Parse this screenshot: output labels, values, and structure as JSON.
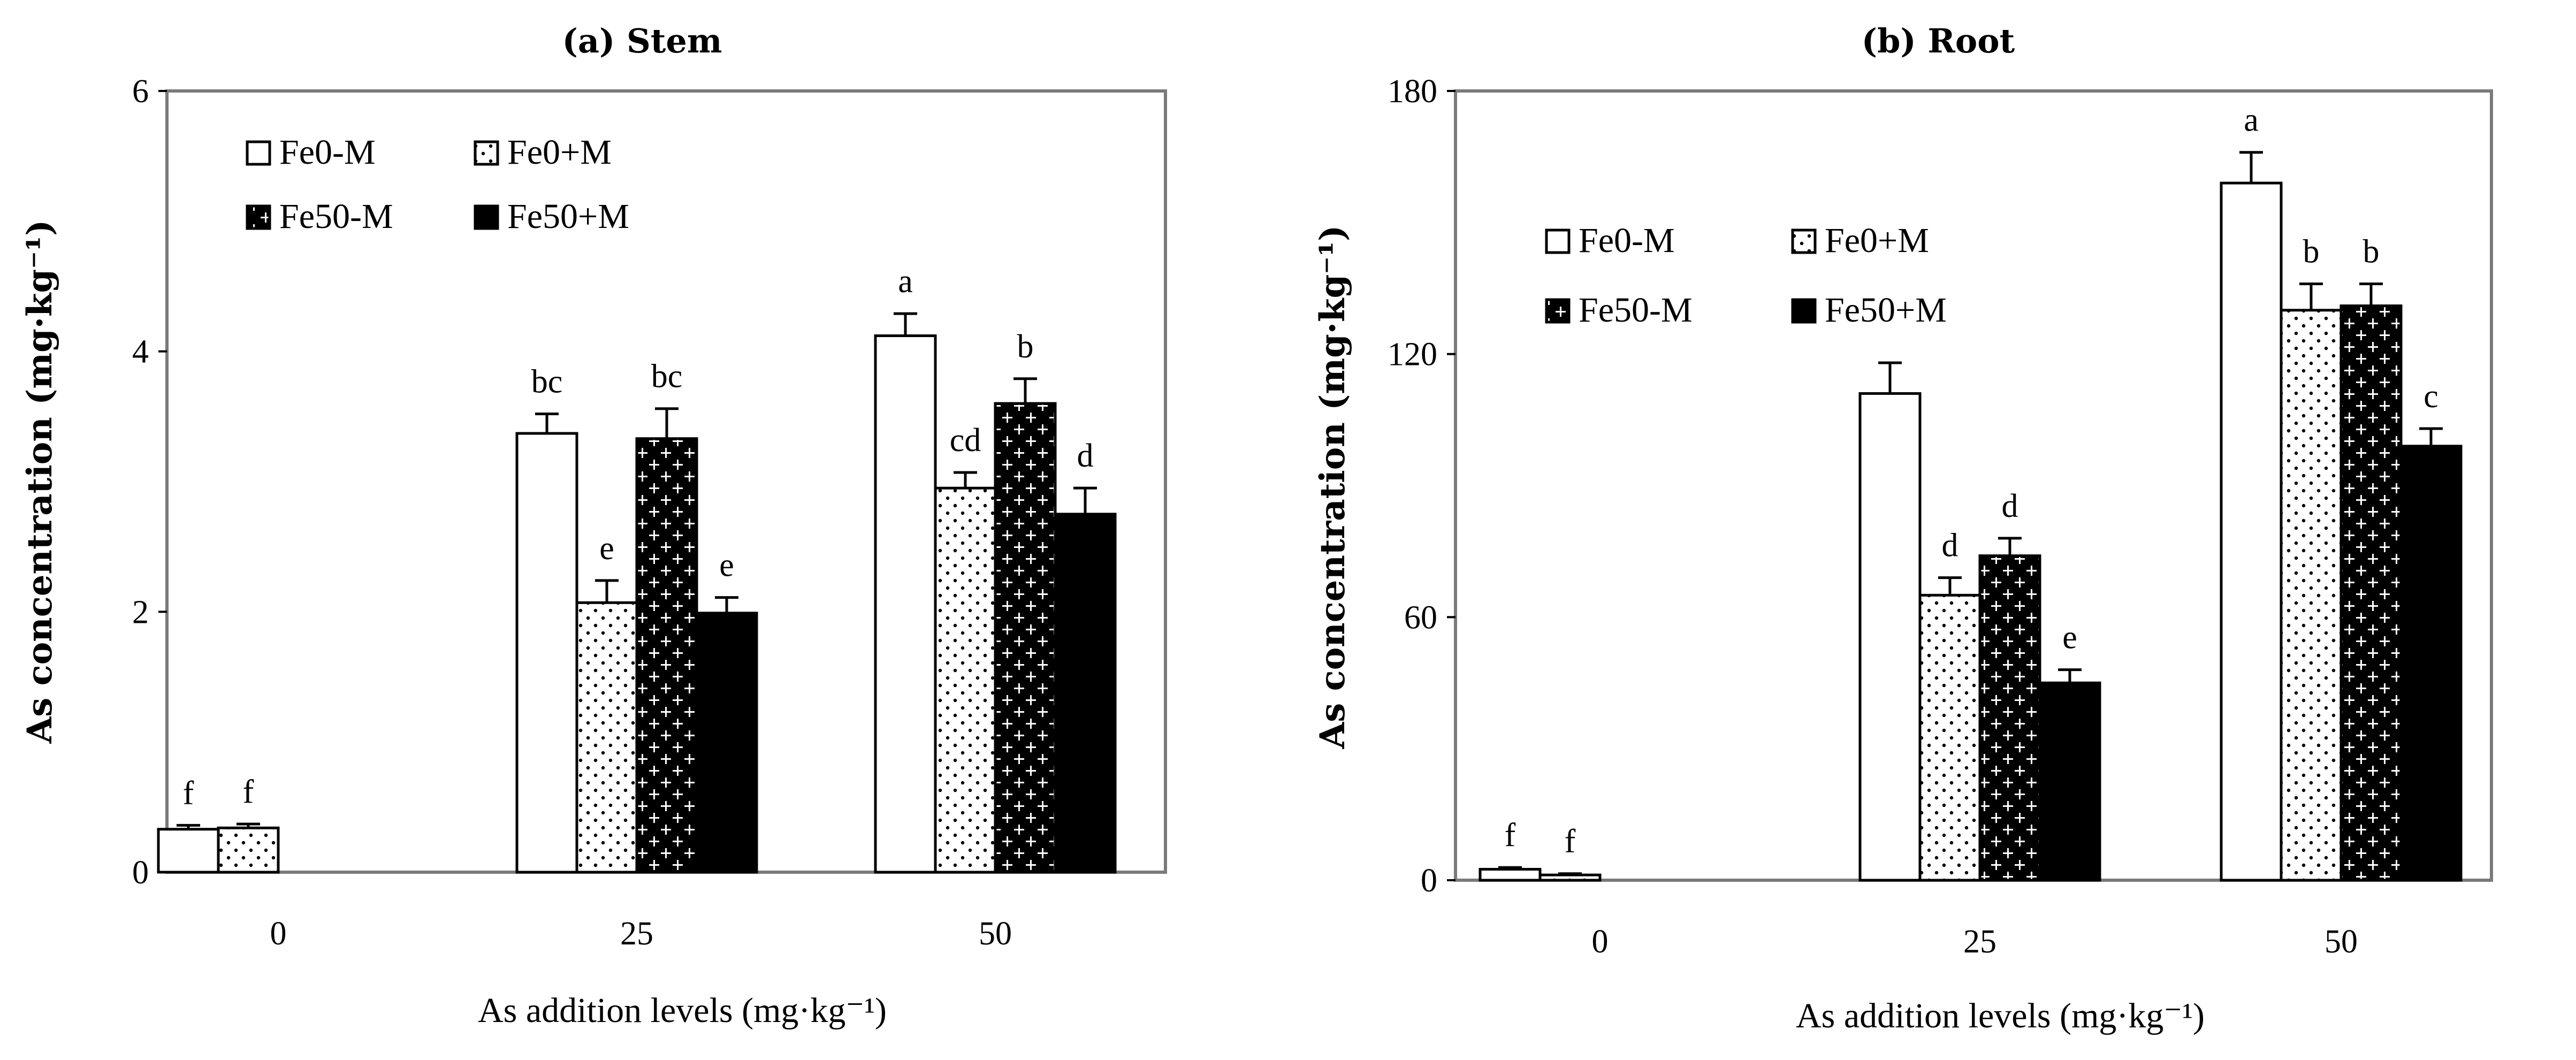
{
  "chart_data": [
    {
      "type": "bar",
      "title": "(a) Stem",
      "xlabel": "As addition levels (mg·kg⁻¹)",
      "ylabel": "As concentration (mg·kg⁻¹)",
      "ylim": [
        0,
        6
      ],
      "yticks": [
        "0",
        "2",
        "4",
        "6"
      ],
      "categories": [
        "0",
        "25",
        "50"
      ],
      "legend_position": "top-left",
      "series": [
        {
          "name": "Fe0-M",
          "pattern": "none",
          "values": [
            0.33,
            3.37,
            4.12
          ],
          "errors": [
            0.03,
            0.15,
            0.17
          ],
          "letters": [
            "f",
            "bc",
            "a"
          ]
        },
        {
          "name": "Fe0+M",
          "pattern": "dots",
          "values": [
            0.34,
            2.07,
            2.95
          ],
          "errors": [
            0.03,
            0.17,
            0.12
          ],
          "letters": [
            "f",
            "e",
            "cd"
          ]
        },
        {
          "name": "Fe50-M",
          "pattern": "crosses",
          "values": [
            null,
            3.33,
            3.6
          ],
          "errors": [
            null,
            0.23,
            0.19
          ],
          "letters": [
            "",
            "bc",
            "b"
          ]
        },
        {
          "name": "Fe50+M",
          "pattern": "solid",
          "values": [
            null,
            1.99,
            2.75
          ],
          "errors": [
            null,
            0.12,
            0.2
          ],
          "letters": [
            "",
            "e",
            "d"
          ]
        }
      ]
    },
    {
      "type": "bar",
      "title": "(b) Root",
      "xlabel": "As addition levels (mg·kg⁻¹)",
      "ylabel": "As concentration (mg·kg⁻¹)",
      "ylim": [
        0,
        180
      ],
      "yticks": [
        "0",
        "60",
        "120",
        "180"
      ],
      "categories": [
        "0",
        "25",
        "50"
      ],
      "legend_position": "upper-left",
      "series": [
        {
          "name": "Fe0-M",
          "pattern": "none",
          "values": [
            2.5,
            111,
            159
          ],
          "errors": [
            0.4,
            7,
            7
          ],
          "letters": [
            "f",
            "",
            "a"
          ]
        },
        {
          "name": "Fe0+M",
          "pattern": "dots",
          "values": [
            1.2,
            65,
            130
          ],
          "errors": [
            0.3,
            4,
            6
          ],
          "letters": [
            "f",
            "d",
            "b"
          ]
        },
        {
          "name": "Fe50-M",
          "pattern": "crosses",
          "values": [
            null,
            74,
            131
          ],
          "errors": [
            null,
            4,
            5
          ],
          "letters": [
            "",
            "d",
            "b"
          ]
        },
        {
          "name": "Fe50+M",
          "pattern": "solid",
          "values": [
            null,
            45,
            99
          ],
          "errors": [
            null,
            3,
            4
          ],
          "letters": [
            "",
            "e",
            "c"
          ]
        }
      ]
    }
  ]
}
